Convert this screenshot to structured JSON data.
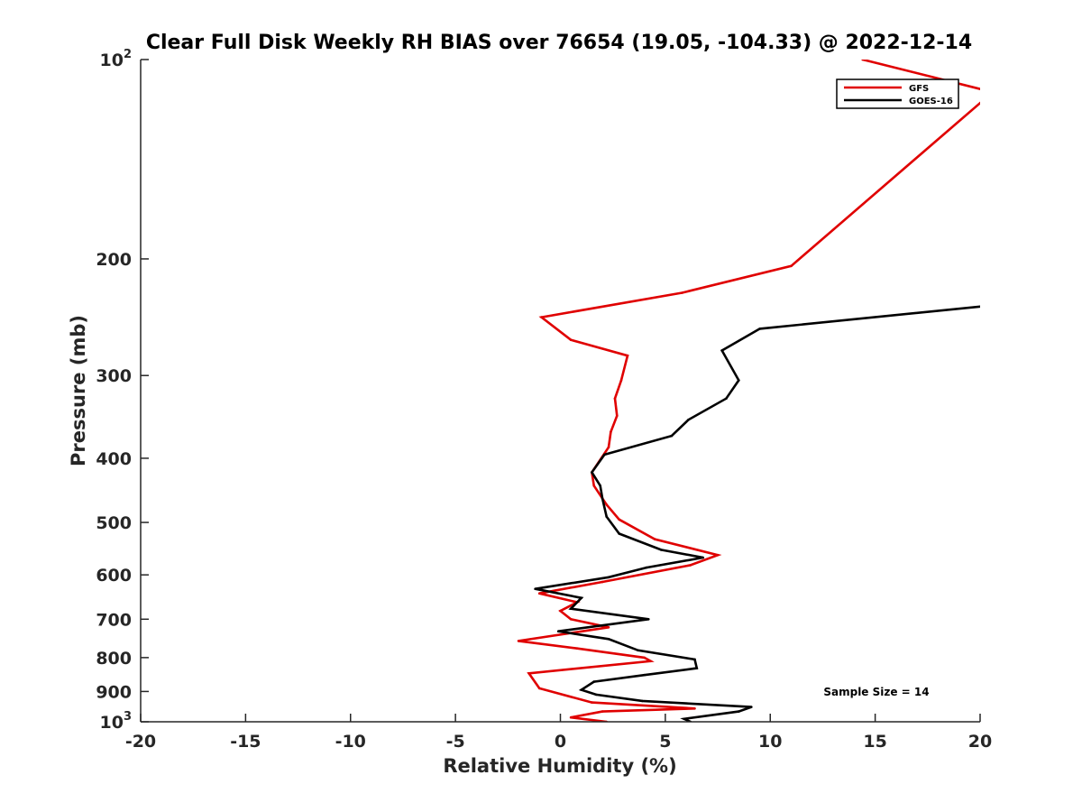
{
  "chart_data": {
    "type": "line",
    "title": "Clear Full Disk Weekly RH BIAS over 76654 (19.05, -104.33) @ 2022-12-14",
    "xlabel": "Relative Humidity (%)",
    "ylabel": "Pressure (mb)",
    "xlim": [
      -20,
      20
    ],
    "ylim": [
      100,
      1000
    ],
    "yscale": "log",
    "y_reversed": true,
    "grid": false,
    "legend_position": "top-right",
    "annotation": "Sample Size = 14",
    "x_ticks": [
      "-20",
      "-15",
      "-10",
      "-5",
      "0",
      "5",
      "10",
      "15",
      "20"
    ],
    "x_tick_values": [
      -20,
      -15,
      -10,
      -5,
      0,
      5,
      10,
      15,
      20
    ],
    "y_ticks": [
      {
        "value": 100,
        "base": "10",
        "exp": "2"
      },
      {
        "value": 200,
        "base": "200",
        "exp": ""
      },
      {
        "value": 300,
        "base": "300",
        "exp": ""
      },
      {
        "value": 400,
        "base": "400",
        "exp": ""
      },
      {
        "value": 500,
        "base": "500",
        "exp": ""
      },
      {
        "value": 600,
        "base": "600",
        "exp": ""
      },
      {
        "value": 700,
        "base": "700",
        "exp": ""
      },
      {
        "value": 800,
        "base": "800",
        "exp": ""
      },
      {
        "value": 900,
        "base": "900",
        "exp": ""
      },
      {
        "value": 1000,
        "base": "10",
        "exp": "3"
      }
    ],
    "series": [
      {
        "name": "GFS",
        "color": "#e00000",
        "x": [
          14.4,
          20.6,
          11.0,
          5.8,
          -0.9,
          0.5,
          3.2,
          2.9,
          2.6,
          2.7,
          2.4,
          2.3,
          1.5,
          1.6,
          2.2,
          2.8,
          4.5,
          7.5,
          6.2,
          2.0,
          -1.0,
          0.8,
          0.0,
          0.5,
          2.3,
          -2.0,
          0.8,
          4.0,
          4.3,
          -1.5,
          -1.0,
          1.5,
          6.4,
          2.0,
          0.5,
          2.2
        ],
        "y": [
          100,
          112,
          205,
          225,
          245,
          265,
          280,
          305,
          325,
          345,
          365,
          385,
          420,
          440,
          470,
          495,
          530,
          560,
          580,
          615,
          640,
          660,
          680,
          700,
          720,
          755,
          775,
          800,
          810,
          845,
          890,
          935,
          955,
          965,
          985,
          1000
        ]
      },
      {
        "name": "GOES-16",
        "color": "#000000",
        "x": [
          20.6,
          9.5,
          7.7,
          8.5,
          7.9,
          6.1,
          5.3,
          2.1,
          1.5,
          1.9,
          2.0,
          2.2,
          2.8,
          4.8,
          6.8,
          4.1,
          2.3,
          -1.2,
          1.0,
          0.5,
          4.2,
          -0.1,
          2.3,
          3.7,
          6.4,
          6.5,
          4.0,
          1.6,
          1.0,
          1.7,
          3.9,
          9.1,
          8.5,
          5.9,
          6.2
        ],
        "y": [
          235,
          255,
          275,
          305,
          325,
          350,
          370,
          395,
          420,
          440,
          460,
          490,
          520,
          550,
          565,
          585,
          605,
          630,
          650,
          675,
          700,
          730,
          750,
          780,
          805,
          830,
          850,
          870,
          895,
          910,
          930,
          950,
          965,
          990,
          1000
        ]
      }
    ]
  }
}
